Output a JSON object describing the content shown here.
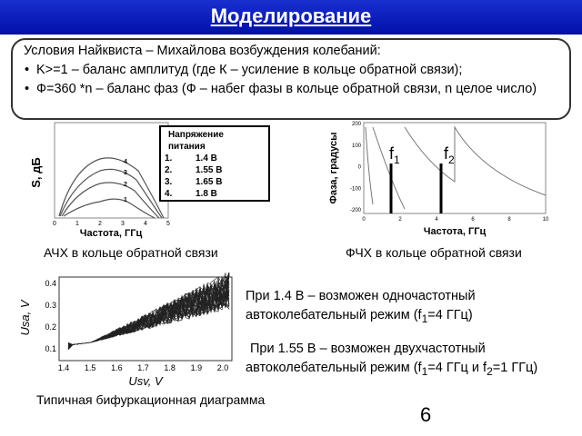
{
  "header": {
    "title": "Моделирование"
  },
  "conditions": {
    "heading": "Условия Найквиста – Михайлова возбуждения колебаний:",
    "items": [
      "K>=1 – баланс амплитуд (где К – усиление в кольце обратной связи);",
      "Ф=360  *n – баланс фаз (Ф – набег фазы в кольце обратной связи, n целое число)"
    ]
  },
  "amplitude_plot": {
    "y_label": "S, дБ",
    "x_label": "Частота, ГГц",
    "x_ticks": [
      "0",
      "1",
      "2",
      "3",
      "4",
      "5"
    ],
    "curve_labels": [
      "1",
      "2",
      "3",
      "4"
    ],
    "caption": "АЧХ в кольце обратной связи"
  },
  "legend": {
    "title": "Напряжение питания",
    "items": [
      {
        "number": "1.",
        "label": "1.4 В"
      },
      {
        "number": "2.",
        "label": "1.55 В"
      },
      {
        "number": "3.",
        "label": "1.65 В"
      },
      {
        "number": "4.",
        "label": "1.8 В"
      }
    ]
  },
  "phase_plot": {
    "y_label": "Фаза, градусы",
    "x_label": "Частота, ГГц",
    "y_ticks": [
      "200",
      "100",
      "0",
      "-100",
      "-200"
    ],
    "x_ticks": [
      "0",
      "2",
      "4",
      "6",
      "8",
      "10"
    ],
    "markers": [
      {
        "name": "f",
        "sub": "1"
      },
      {
        "name": "f",
        "sub": "2"
      }
    ],
    "caption": "ФЧХ в кольце обратной связи"
  },
  "bifurcation_plot": {
    "y_label": "Usa, V",
    "x_label": "Usv, V",
    "x_ticks": [
      "1.4",
      "1.5",
      "1.6",
      "1.7",
      "1.8",
      "1.9",
      "2.0"
    ],
    "y_ticks": [
      "0.4",
      "0.3",
      "0.2",
      "0.1"
    ],
    "caption": "Типичная бифуркационная диаграмма"
  },
  "notes": [
    [
      "При 1.4 В – возможен одночастотный автоколебательный режим (f",
      {
        "sub": "1"
      },
      "=4 ГГц)"
    ],
    [
      "При 1.55 В – возможен двухчастотный автоколебательный режим (f",
      {
        "sub": "1"
      },
      "=4 ГГц и f",
      {
        "sub": "2"
      },
      "=1 ГГц)"
    ]
  ],
  "page_number": "6"
}
